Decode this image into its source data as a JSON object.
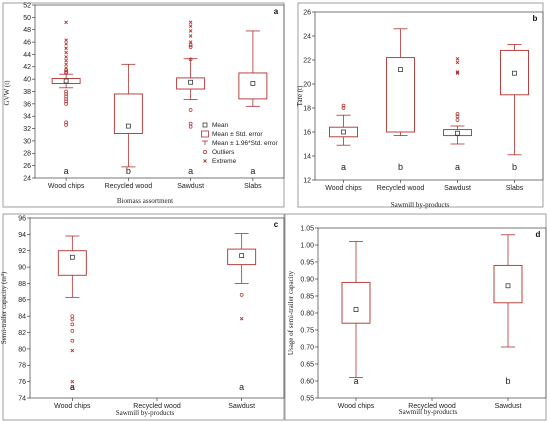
{
  "chart_data": [
    {
      "type": "box",
      "panel": "a",
      "categories": [
        "Wood chips",
        "Recycled wood",
        "Sawdust",
        "Slabs"
      ],
      "xlabel": "Biomass assortment",
      "ylabel": "GVW (t)",
      "ylim": [
        24,
        52
      ],
      "yticks": [
        24,
        26,
        28,
        30,
        32,
        34,
        36,
        38,
        40,
        42,
        44,
        46,
        48,
        50,
        52
      ],
      "boxes": [
        {
          "mean": 39.7,
          "box": [
            39.3,
            40.1
          ],
          "whisker": [
            38.6,
            40.8
          ],
          "outliers": [
            41.5,
            41.2,
            41.0,
            38.0,
            37.6,
            37.2,
            36.8,
            36.4,
            36.0,
            33.0,
            32.6
          ],
          "extremes": [
            49.2,
            46.3,
            45.7,
            45.0,
            44.3,
            43.6,
            43.0,
            42.4,
            41.8
          ],
          "group": "a"
        },
        {
          "mean": 32.4,
          "box": [
            31.2,
            37.6
          ],
          "whisker": [
            25.8,
            42.4
          ],
          "outliers": [],
          "extremes": [],
          "group": "b"
        },
        {
          "mean": 39.5,
          "box": [
            38.4,
            40.2
          ],
          "whisker": [
            36.7,
            43.3
          ],
          "outliers": [
            45.5,
            45.2,
            43.2,
            35.0,
            32.8,
            32.3
          ],
          "extremes": [
            49.2,
            48.6,
            47.8,
            47.0,
            46.0
          ],
          "group": "a"
        },
        {
          "mean": 39.3,
          "box": [
            36.8,
            41.0
          ],
          "whisker": [
            35.6,
            47.8
          ],
          "outliers": [],
          "extremes": [],
          "group": "a"
        }
      ],
      "legend": [
        "Mean",
        "Mean ± Std. error",
        "Mean ± 1.96*Std. error",
        "Outliers",
        "Extreme"
      ]
    },
    {
      "type": "box",
      "panel": "b",
      "categories": [
        "Wood chips",
        "Recycled wood",
        "Sawdust",
        "Slabs"
      ],
      "xlabel": "Sawmill by-products",
      "ylabel": "Tare (t)",
      "ylim": [
        12,
        26
      ],
      "yticks": [
        12,
        14,
        16,
        18,
        20,
        22,
        24,
        26
      ],
      "boxes": [
        {
          "mean": 16.0,
          "box": [
            15.6,
            16.4
          ],
          "whisker": [
            14.9,
            17.4
          ],
          "outliers": [
            18.2,
            18.0
          ],
          "extremes": [],
          "group": "a"
        },
        {
          "mean": 21.2,
          "box": [
            16.0,
            22.2
          ],
          "whisker": [
            15.7,
            24.6
          ],
          "outliers": [],
          "extremes": [],
          "group": "b"
        },
        {
          "mean": 15.9,
          "box": [
            15.7,
            16.2
          ],
          "whisker": [
            15.0,
            16.5
          ],
          "outliers": [
            17.5,
            17.3,
            17.0
          ],
          "extremes": [
            22.1,
            21.8,
            21.0,
            20.9
          ],
          "group": "a"
        },
        {
          "mean": 20.9,
          "box": [
            19.1,
            22.8
          ],
          "whisker": [
            14.1,
            23.3
          ],
          "outliers": [],
          "extremes": [],
          "group": "b"
        }
      ]
    },
    {
      "type": "box",
      "panel": "c",
      "categories": [
        "Wood chips",
        "Recycled wood",
        "Sawdust"
      ],
      "xlabel": "Sawmill by-products",
      "ylabel": "Semi-trailer capacity (m³)",
      "ylim": [
        74,
        96
      ],
      "yticks": [
        74,
        76,
        78,
        80,
        82,
        84,
        86,
        88,
        90,
        92,
        94,
        96
      ],
      "boxes": [
        {
          "mean": 91.2,
          "box": [
            89.0,
            92.0
          ],
          "whisker": [
            86.3,
            93.8
          ],
          "outliers": [
            84.0,
            83.6,
            83.0,
            82.2,
            81.0,
            75.2
          ],
          "extremes": [
            79.8,
            76.0
          ],
          "group": "a"
        },
        null,
        {
          "mean": 91.4,
          "box": [
            90.3,
            92.2
          ],
          "whisker": [
            88.0,
            94.1
          ],
          "outliers": [
            86.6
          ],
          "extremes": [
            83.7
          ],
          "group": "a"
        }
      ]
    },
    {
      "type": "box",
      "panel": "d",
      "categories": [
        "Wood chips",
        "Recycled wood",
        "Sawdust"
      ],
      "xlabel": "Sawmill by-products",
      "ylabel": "Usage of semi-trailer capacity",
      "ylim": [
        0.55,
        1.05
      ],
      "yticks": [
        0.55,
        0.6,
        0.65,
        0.7,
        0.75,
        0.8,
        0.85,
        0.9,
        0.95,
        1.0,
        1.05
      ],
      "boxes": [
        {
          "mean": 0.81,
          "box": [
            0.77,
            0.89
          ],
          "whisker": [
            0.61,
            1.01
          ],
          "outliers": [],
          "extremes": [],
          "group": "a"
        },
        null,
        {
          "mean": 0.88,
          "box": [
            0.83,
            0.94
          ],
          "whisker": [
            0.7,
            1.03
          ],
          "outliers": [],
          "extremes": [],
          "group": "b"
        }
      ]
    }
  ],
  "colors": {
    "box": "#b0302e",
    "marker": "#b0302e",
    "frame": "#555555",
    "axis": "#222222"
  }
}
